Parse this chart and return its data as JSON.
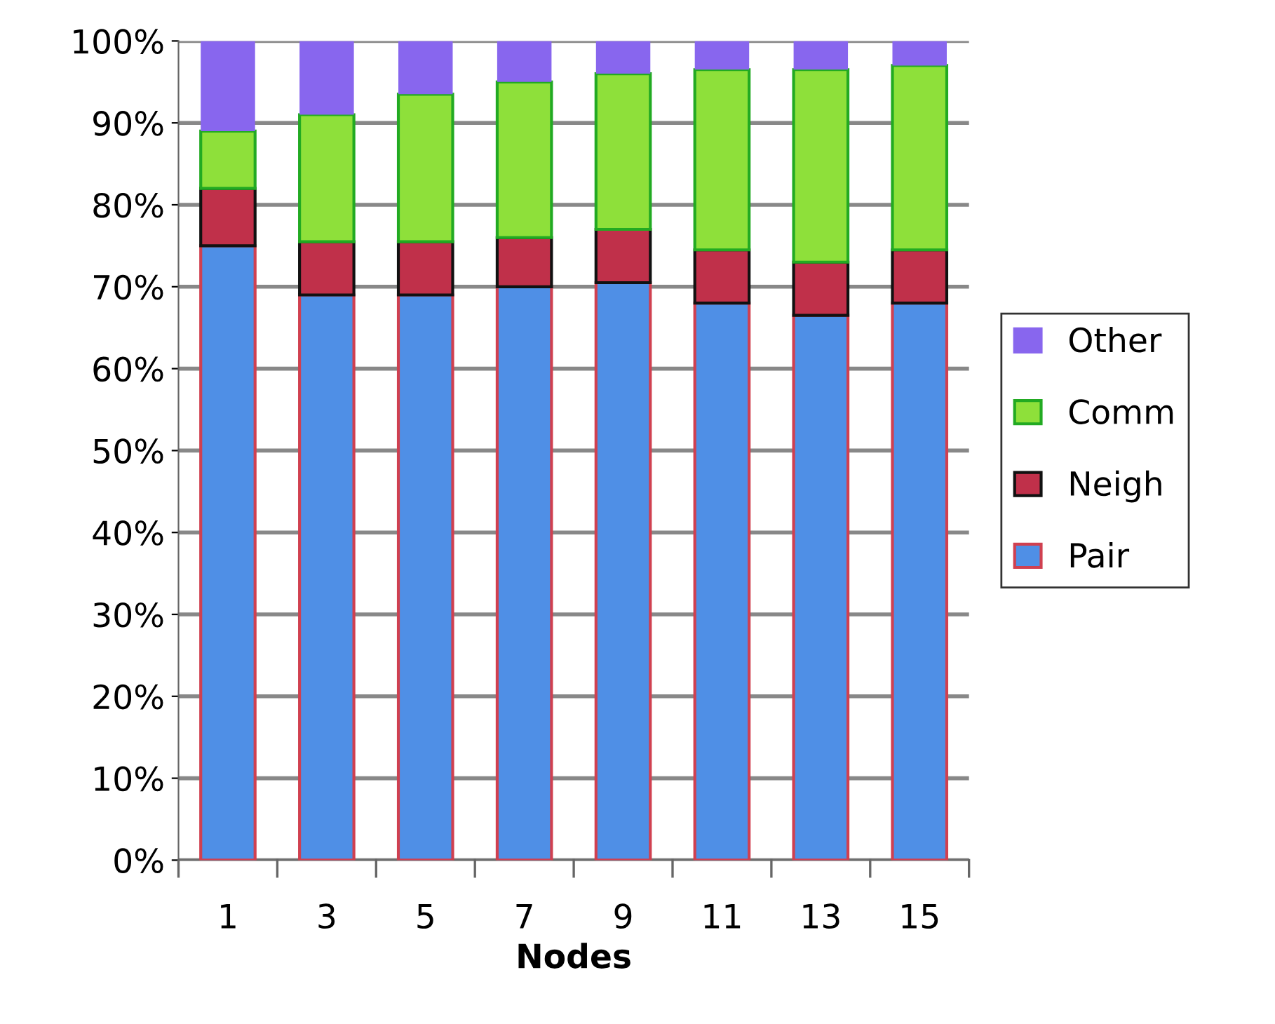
{
  "chart_data": {
    "type": "bar",
    "stacked": true,
    "xlabel": "Nodes",
    "categories": [
      "1",
      "3",
      "5",
      "7",
      "9",
      "11",
      "13",
      "15"
    ],
    "series": [
      {
        "name": "Pair",
        "color": "#4f8fe6",
        "values": [
          75,
          69,
          69,
          70,
          70.5,
          68,
          66.5,
          68
        ]
      },
      {
        "name": "Neigh",
        "color": "#c0304a",
        "values": [
          7,
          6.5,
          6.5,
          6,
          6.5,
          6.5,
          6.5,
          6.5
        ]
      },
      {
        "name": "Comm",
        "color": "#8ee03a",
        "values": [
          7,
          15.5,
          18,
          19,
          19,
          22,
          23.5,
          22.5
        ]
      },
      {
        "name": "Other",
        "color": "#8866ee",
        "values": [
          11,
          9,
          6.5,
          5,
          4,
          3.5,
          3.5,
          3
        ]
      }
    ],
    "ylim": [
      0,
      100
    ],
    "yticks": [
      {
        "value": 0,
        "label": "0%"
      },
      {
        "value": 10,
        "label": "10%"
      },
      {
        "value": 20,
        "label": "20%"
      },
      {
        "value": 30,
        "label": "30%"
      },
      {
        "value": 40,
        "label": "40%"
      },
      {
        "value": 50,
        "label": "50%"
      },
      {
        "value": 60,
        "label": "60%"
      },
      {
        "value": 70,
        "label": "70%"
      },
      {
        "value": 80,
        "label": "80%"
      },
      {
        "value": 90,
        "label": "90%"
      },
      {
        "value": 100,
        "label": "100%"
      }
    ],
    "grid": "y",
    "legend": "right"
  }
}
